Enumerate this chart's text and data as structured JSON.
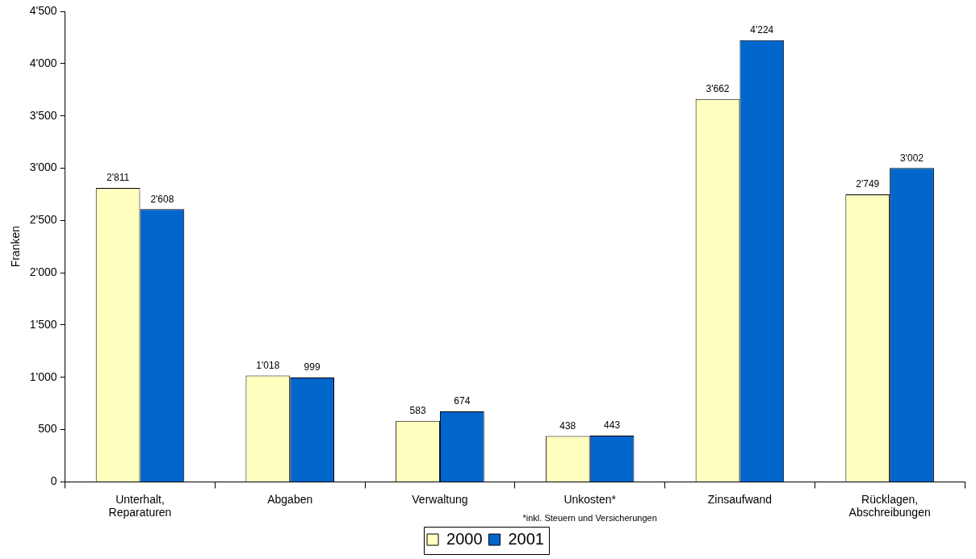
{
  "chart_data": {
    "type": "bar",
    "ylabel": "Franken",
    "categories": [
      "Unterhalt,\nReparaturen",
      "Abgaben",
      "Verwaltung",
      "Unkosten*",
      "Zinsaufwand",
      "Rücklagen,\nAbschreibungen"
    ],
    "series": [
      {
        "name": "2000",
        "color": "#ffffc0",
        "values": [
          2811,
          1018,
          583,
          438,
          3662,
          2749
        ],
        "value_labels": [
          "2'811",
          "1'018",
          "583",
          "438",
          "3'662",
          "2'749"
        ]
      },
      {
        "name": "2001",
        "color": "#0066cc",
        "values": [
          2608,
          999,
          674,
          443,
          4224,
          3002
        ],
        "value_labels": [
          "2'608",
          "999",
          "674",
          "443",
          "4'224",
          "3'002"
        ]
      }
    ],
    "ylim": [
      0,
      4500
    ],
    "yticks": [
      {
        "value": 0,
        "label": "0"
      },
      {
        "value": 500,
        "label": "500"
      },
      {
        "value": 1000,
        "label": "1'000"
      },
      {
        "value": 1500,
        "label": "1'500"
      },
      {
        "value": 2000,
        "label": "2'000"
      },
      {
        "value": 2500,
        "label": "2'500"
      },
      {
        "value": 3000,
        "label": "3'000"
      },
      {
        "value": 3500,
        "label": "3'500"
      },
      {
        "value": 4000,
        "label": "4'000"
      },
      {
        "value": 4500,
        "label": "4'500"
      }
    ],
    "annotations": [
      "*inkl. Steuern und Versicherungen"
    ],
    "grid": false,
    "legend": "bottom"
  }
}
